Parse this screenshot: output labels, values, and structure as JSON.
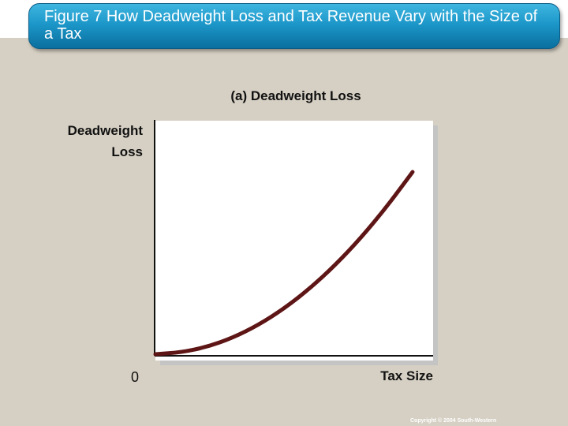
{
  "slide": {
    "title": "Figure 7 How Deadweight Loss and Tax Revenue Vary with the Size of a Tax",
    "copyright": "Copyright © 2004 South-Western"
  },
  "colors": {
    "banner": "#1c97c9",
    "background": "#d6d0c4",
    "curve": "#5e1515"
  },
  "chart_data": {
    "type": "line",
    "title": "(a) Deadweight Loss",
    "ylabel_lines": [
      "Deadweight",
      "Loss"
    ],
    "xlabel": "Tax Size",
    "origin_label": "0",
    "xlim": [
      0,
      1
    ],
    "ylim": [
      0,
      1
    ],
    "grid": false,
    "series": [
      {
        "x": [
          0,
          0.1,
          0.2,
          0.3,
          0.4,
          0.5,
          0.6,
          0.7,
          0.8,
          0.9,
          1.0
        ],
        "values": [
          0,
          0.01,
          0.04,
          0.09,
          0.16,
          0.25,
          0.36,
          0.49,
          0.64,
          0.81,
          1.0
        ]
      }
    ]
  }
}
